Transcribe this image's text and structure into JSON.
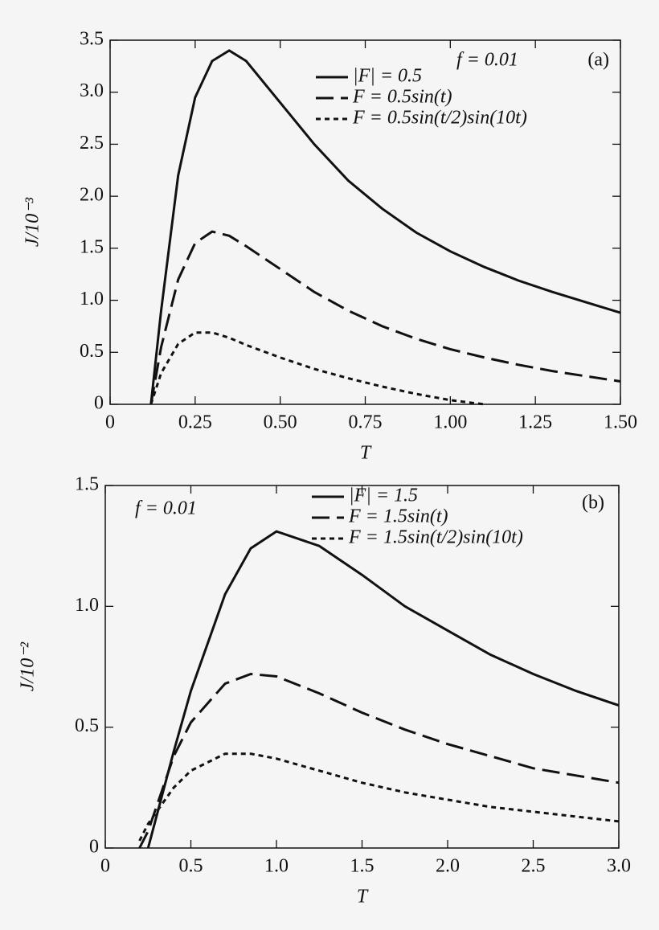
{
  "chart_data": [
    {
      "type": "line",
      "x_label": "T",
      "y_label": "J/10⁻³",
      "annotations": [
        "f = 0.01",
        "(a)"
      ],
      "xlim": [
        0,
        1.5
      ],
      "ylim": [
        0,
        3.5
      ],
      "xticks": [
        0,
        0.25,
        {
          "value": 0.5,
          "label": "0.50"
        },
        0.75,
        {
          "value": 1,
          "label": "1.00"
        },
        1.25,
        {
          "value": 1.5,
          "label": "1.50"
        }
      ],
      "yticks": [
        0,
        0.5,
        {
          "value": 1,
          "label": "1.0"
        },
        1.5,
        {
          "value": 2,
          "label": "2.0"
        },
        2.5,
        {
          "value": 3,
          "label": "3.0"
        },
        3.5
      ],
      "legend": "upper right",
      "x": [
        0.12,
        0.15,
        0.2,
        0.25,
        0.3,
        0.35,
        0.4,
        0.5,
        0.6,
        0.7,
        0.8,
        0.9,
        1.0,
        1.1,
        1.2,
        1.3,
        1.4,
        1.5
      ],
      "series": [
        {
          "name": "|F| = 0.5",
          "color": "#111111",
          "dash": "solid",
          "values": [
            0,
            0.9,
            2.2,
            2.95,
            3.3,
            3.4,
            3.3,
            2.9,
            2.5,
            2.15,
            1.88,
            1.65,
            1.47,
            1.32,
            1.19,
            1.08,
            0.98,
            0.88
          ]
        },
        {
          "name": "F = 0.5sin(t)",
          "color": "#111111",
          "dash": "dashed",
          "values": [
            0,
            0.55,
            1.2,
            1.55,
            1.66,
            1.62,
            1.52,
            1.3,
            1.08,
            0.9,
            0.75,
            0.63,
            0.53,
            0.45,
            0.38,
            0.32,
            0.27,
            0.22
          ]
        },
        {
          "name": "F = 0.5sin(t/2)sin(10t)",
          "color": "#111111",
          "dash": "dotted",
          "values": [
            0,
            0.3,
            0.58,
            0.69,
            0.69,
            0.64,
            0.57,
            0.45,
            0.34,
            0.25,
            0.17,
            0.1,
            0.04,
            0,
            null,
            null,
            null,
            null
          ]
        }
      ]
    },
    {
      "type": "line",
      "x_label": "T",
      "y_label": "J/10⁻²",
      "annotations": [
        "f = 0.01",
        "(b)"
      ],
      "xlim": [
        0,
        3
      ],
      "ylim": [
        0,
        1.5
      ],
      "xticks": [
        0,
        0.5,
        {
          "value": 1,
          "label": "1.0"
        },
        1.5,
        {
          "value": 2,
          "label": "2.0"
        },
        2.5,
        {
          "value": 3,
          "label": "3.0"
        }
      ],
      "yticks": [
        0,
        0.5,
        {
          "value": 1,
          "label": "1.0"
        },
        1.5
      ],
      "legend": "upper right",
      "x": [
        0.2,
        0.25,
        0.4,
        0.5,
        0.7,
        0.85,
        1.0,
        1.25,
        1.5,
        1.75,
        2.0,
        2.25,
        2.5,
        2.75,
        3.0
      ],
      "series": [
        {
          "name": "|F| = 1.5",
          "color": "#111111",
          "dash": "solid",
          "values": [
            null,
            0,
            0.4,
            0.65,
            1.05,
            1.24,
            1.31,
            1.25,
            1.13,
            1.0,
            0.9,
            0.8,
            0.72,
            0.65,
            0.59
          ]
        },
        {
          "name": "F = 1.5sin(t)",
          "color": "#111111",
          "dash": "dashed",
          "values": [
            0,
            0.07,
            0.38,
            0.52,
            0.68,
            0.72,
            0.71,
            0.64,
            0.56,
            0.49,
            0.43,
            0.38,
            0.33,
            0.3,
            0.27
          ]
        },
        {
          "name": "F = 1.5sin(t/2)sin(10t)",
          "color": "#111111",
          "dash": "dotted",
          "values": [
            0.03,
            0.1,
            0.25,
            0.32,
            0.39,
            0.39,
            0.37,
            0.32,
            0.27,
            0.23,
            0.2,
            0.17,
            0.15,
            0.13,
            0.11
          ]
        }
      ]
    }
  ]
}
